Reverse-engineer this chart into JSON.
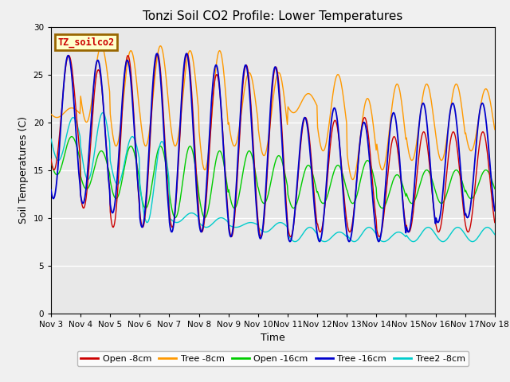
{
  "title": "Tonzi Soil CO2 Profile: Lower Temperatures",
  "xlabel": "Time",
  "ylabel": "Soil Temperatures (C)",
  "ylim": [
    0,
    30
  ],
  "xlim_days": 15,
  "xtick_labels": [
    "Nov 3",
    "Nov 4",
    "Nov 5",
    "Nov 6",
    "Nov 7",
    "Nov 8",
    "Nov 9",
    "Nov 10",
    "Nov 11",
    "Nov 12",
    "Nov 13",
    "Nov 14",
    "Nov 15",
    "Nov 16",
    "Nov 17",
    "Nov 18"
  ],
  "ytick_values": [
    0,
    5,
    10,
    15,
    20,
    25,
    30
  ],
  "series_labels": [
    "Open -8cm",
    "Tree -8cm",
    "Open -16cm",
    "Tree -16cm",
    "Tree2 -8cm"
  ],
  "series_colors": [
    "#cc0000",
    "#ff9900",
    "#00cc00",
    "#0000cc",
    "#00cccc"
  ],
  "legend_title": "TZ_soilco2",
  "legend_title_color": "#cc0000",
  "legend_bg_color": "#ffffcc",
  "legend_border_color": "#996600",
  "plot_bg_color": "#e8e8e8",
  "fig_bg_color": "#f0f0f0",
  "grid_color": "#ffffff",
  "title_fontsize": 11,
  "axis_label_fontsize": 9,
  "tick_fontsize": 7.5,
  "legend_fontsize": 8,
  "n_points_per_day": 48,
  "n_days": 15,
  "open8_peaks": [
    27.0,
    25.5,
    27.0,
    27.2,
    27.2,
    25.0,
    26.0,
    25.8,
    20.5,
    20.2,
    20.5,
    18.5,
    19.0,
    19.0,
    19.0
  ],
  "open8_troughs": [
    15.0,
    11.0,
    9.0,
    9.0,
    9.0,
    8.5,
    8.0,
    8.0,
    8.0,
    8.5,
    8.5,
    8.0,
    8.5,
    8.5,
    8.5
  ],
  "open8_peak_phase": 0.6,
  "tree8_peaks": [
    21.5,
    28.0,
    27.5,
    28.0,
    27.5,
    27.5,
    25.2,
    25.2,
    23.0,
    25.0,
    22.5,
    24.0,
    24.0,
    24.0,
    23.5
  ],
  "tree8_troughs": [
    20.5,
    20.0,
    17.5,
    17.5,
    17.5,
    15.0,
    17.5,
    16.5,
    21.0,
    17.0,
    14.0,
    15.0,
    16.0,
    16.0,
    17.0
  ],
  "tree8_peak_phase": 0.7,
  "open16_peaks": [
    18.5,
    17.0,
    17.5,
    17.5,
    17.5,
    17.0,
    17.0,
    16.5,
    15.5,
    15.5,
    16.0,
    14.5,
    15.0,
    15.0,
    15.0
  ],
  "open16_troughs": [
    14.5,
    13.0,
    12.0,
    11.0,
    10.0,
    10.0,
    11.0,
    11.5,
    11.0,
    11.5,
    11.5,
    11.0,
    11.5,
    11.5,
    12.0
  ],
  "open16_peak_phase": 0.7,
  "tree16_peaks": [
    27.0,
    26.5,
    26.5,
    27.2,
    27.2,
    26.0,
    26.0,
    25.8,
    20.5,
    21.5,
    20.0,
    21.0,
    22.0,
    22.0,
    22.0
  ],
  "tree16_troughs": [
    12.0,
    11.5,
    10.5,
    9.0,
    8.5,
    8.5,
    8.0,
    7.8,
    7.5,
    7.5,
    7.5,
    7.5,
    8.5,
    9.5,
    10.0
  ],
  "tree16_peak_phase": 0.58,
  "tree28_peaks": [
    20.5,
    21.0,
    18.5,
    18.0,
    10.5,
    10.0,
    9.5,
    9.5,
    9.0,
    8.5,
    9.0,
    8.5,
    9.0,
    9.0,
    9.0
  ],
  "tree28_troughs": [
    16.0,
    14.0,
    13.5,
    9.5,
    9.5,
    9.0,
    9.0,
    8.5,
    7.5,
    7.5,
    7.5,
    7.5,
    7.5,
    7.5,
    7.5
  ],
  "tree28_peak_phase": 0.75
}
